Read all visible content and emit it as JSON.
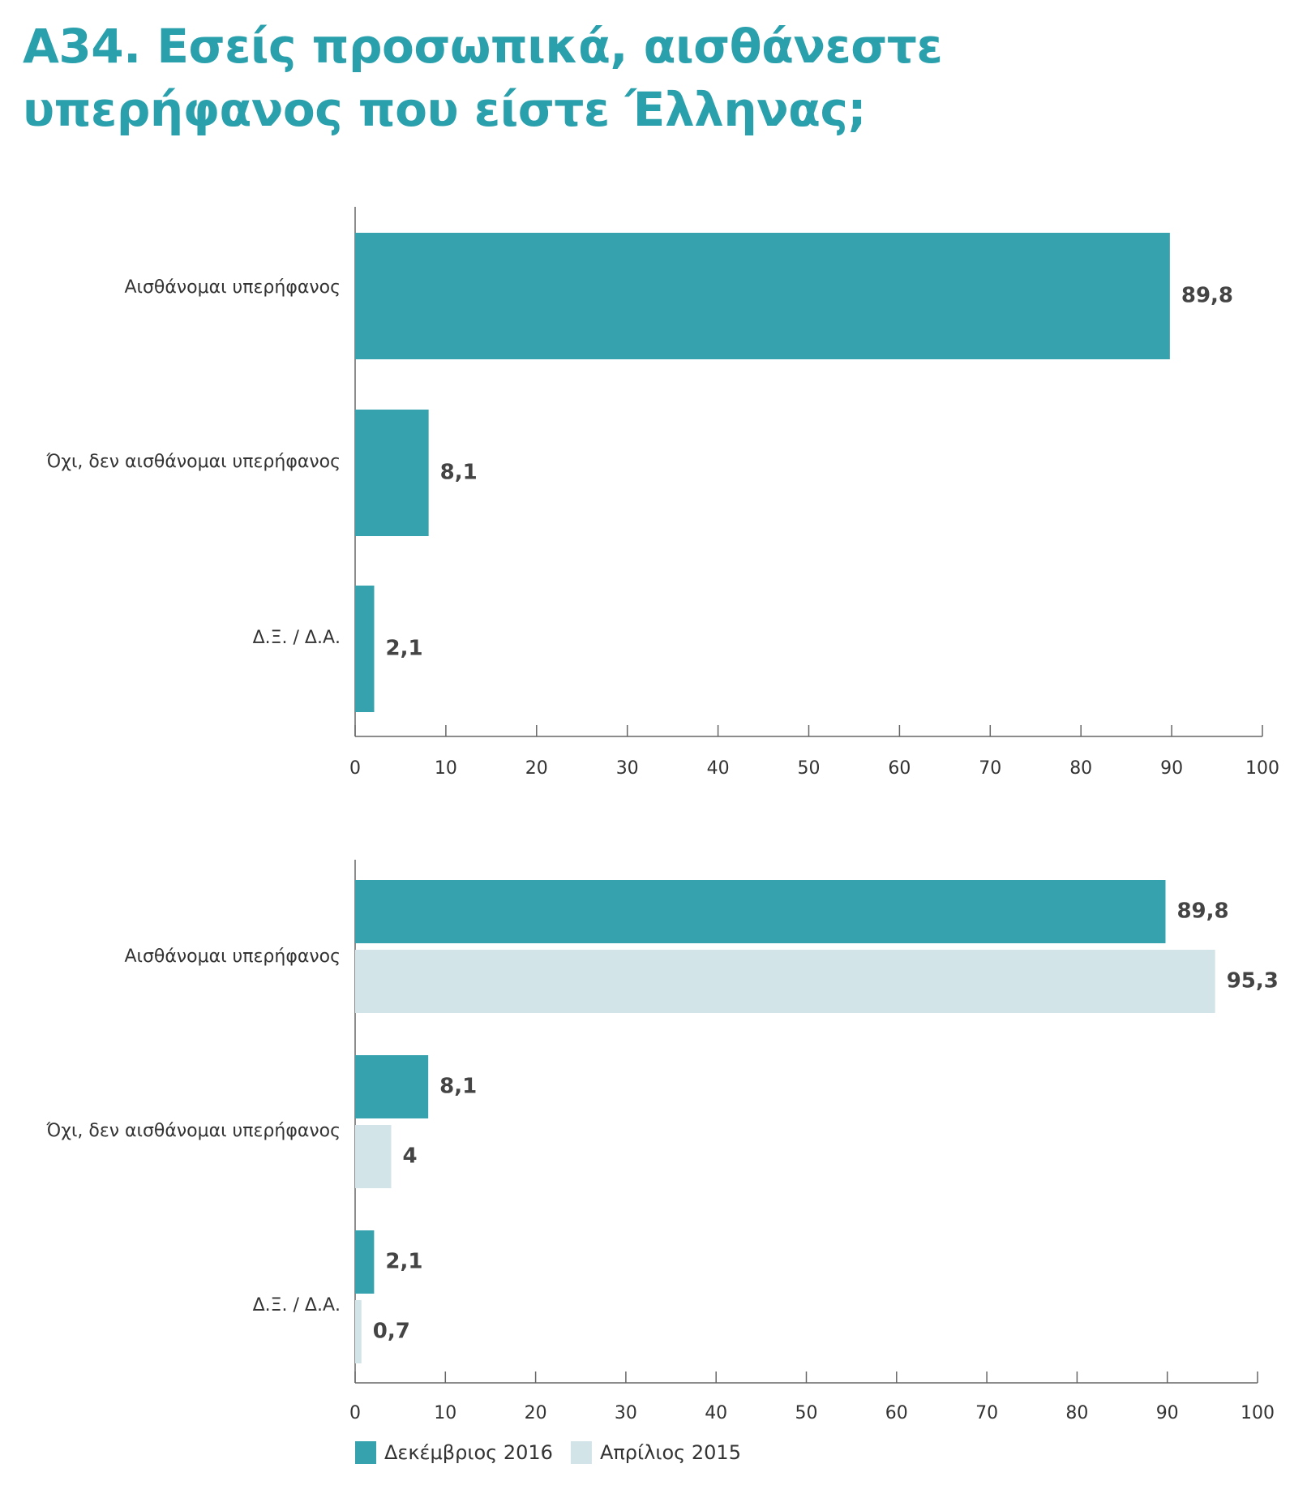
{
  "title": "A34. Εσείς προσωπικά, αισθάνεστε υπερήφανος που είστε Έλληνας;",
  "colors": {
    "dec2016": "#36a2ae",
    "apr2015": "#d2e4e8",
    "title": "#2aa0ad",
    "axis": "#666666"
  },
  "chart_data": [
    {
      "type": "bar",
      "orientation": "horizontal",
      "categories": [
        "Αισθάνομαι υπερήφανος",
        "Όχι, δεν αισθάνομαι υπερήφανος",
        "Δ.Ξ. / Δ.Α."
      ],
      "series": [
        {
          "values": [
            89.8,
            8.1,
            2.1
          ],
          "labels": [
            "89,8",
            "8,1",
            "2,1"
          ],
          "color": "#36a2ae"
        }
      ],
      "xlim": [
        0,
        100
      ],
      "ticks": [
        "0",
        "10",
        "20",
        "30",
        "40",
        "50",
        "60",
        "70",
        "80",
        "90",
        "100"
      ]
    },
    {
      "type": "bar",
      "orientation": "horizontal",
      "categories": [
        "Αισθάνομαι υπερήφανος",
        "Όχι, δεν αισθάνομαι υπερήφανος",
        "Δ.Ξ. / Δ.Α."
      ],
      "series": [
        {
          "name": "Δεκέμβριος 2016",
          "values": [
            89.8,
            8.1,
            2.1
          ],
          "labels": [
            "89,8",
            "8,1",
            "2,1"
          ],
          "color": "#36a2ae"
        },
        {
          "name": "Απρίλιος 2015",
          "values": [
            95.3,
            4,
            0.7
          ],
          "labels": [
            "95,3",
            "4",
            "0,7"
          ],
          "color": "#d2e4e8"
        }
      ],
      "xlim": [
        0,
        100
      ],
      "ticks": [
        "0",
        "10",
        "20",
        "30",
        "40",
        "50",
        "60",
        "70",
        "80",
        "90",
        "100"
      ],
      "legend": "bottom-left"
    }
  ]
}
